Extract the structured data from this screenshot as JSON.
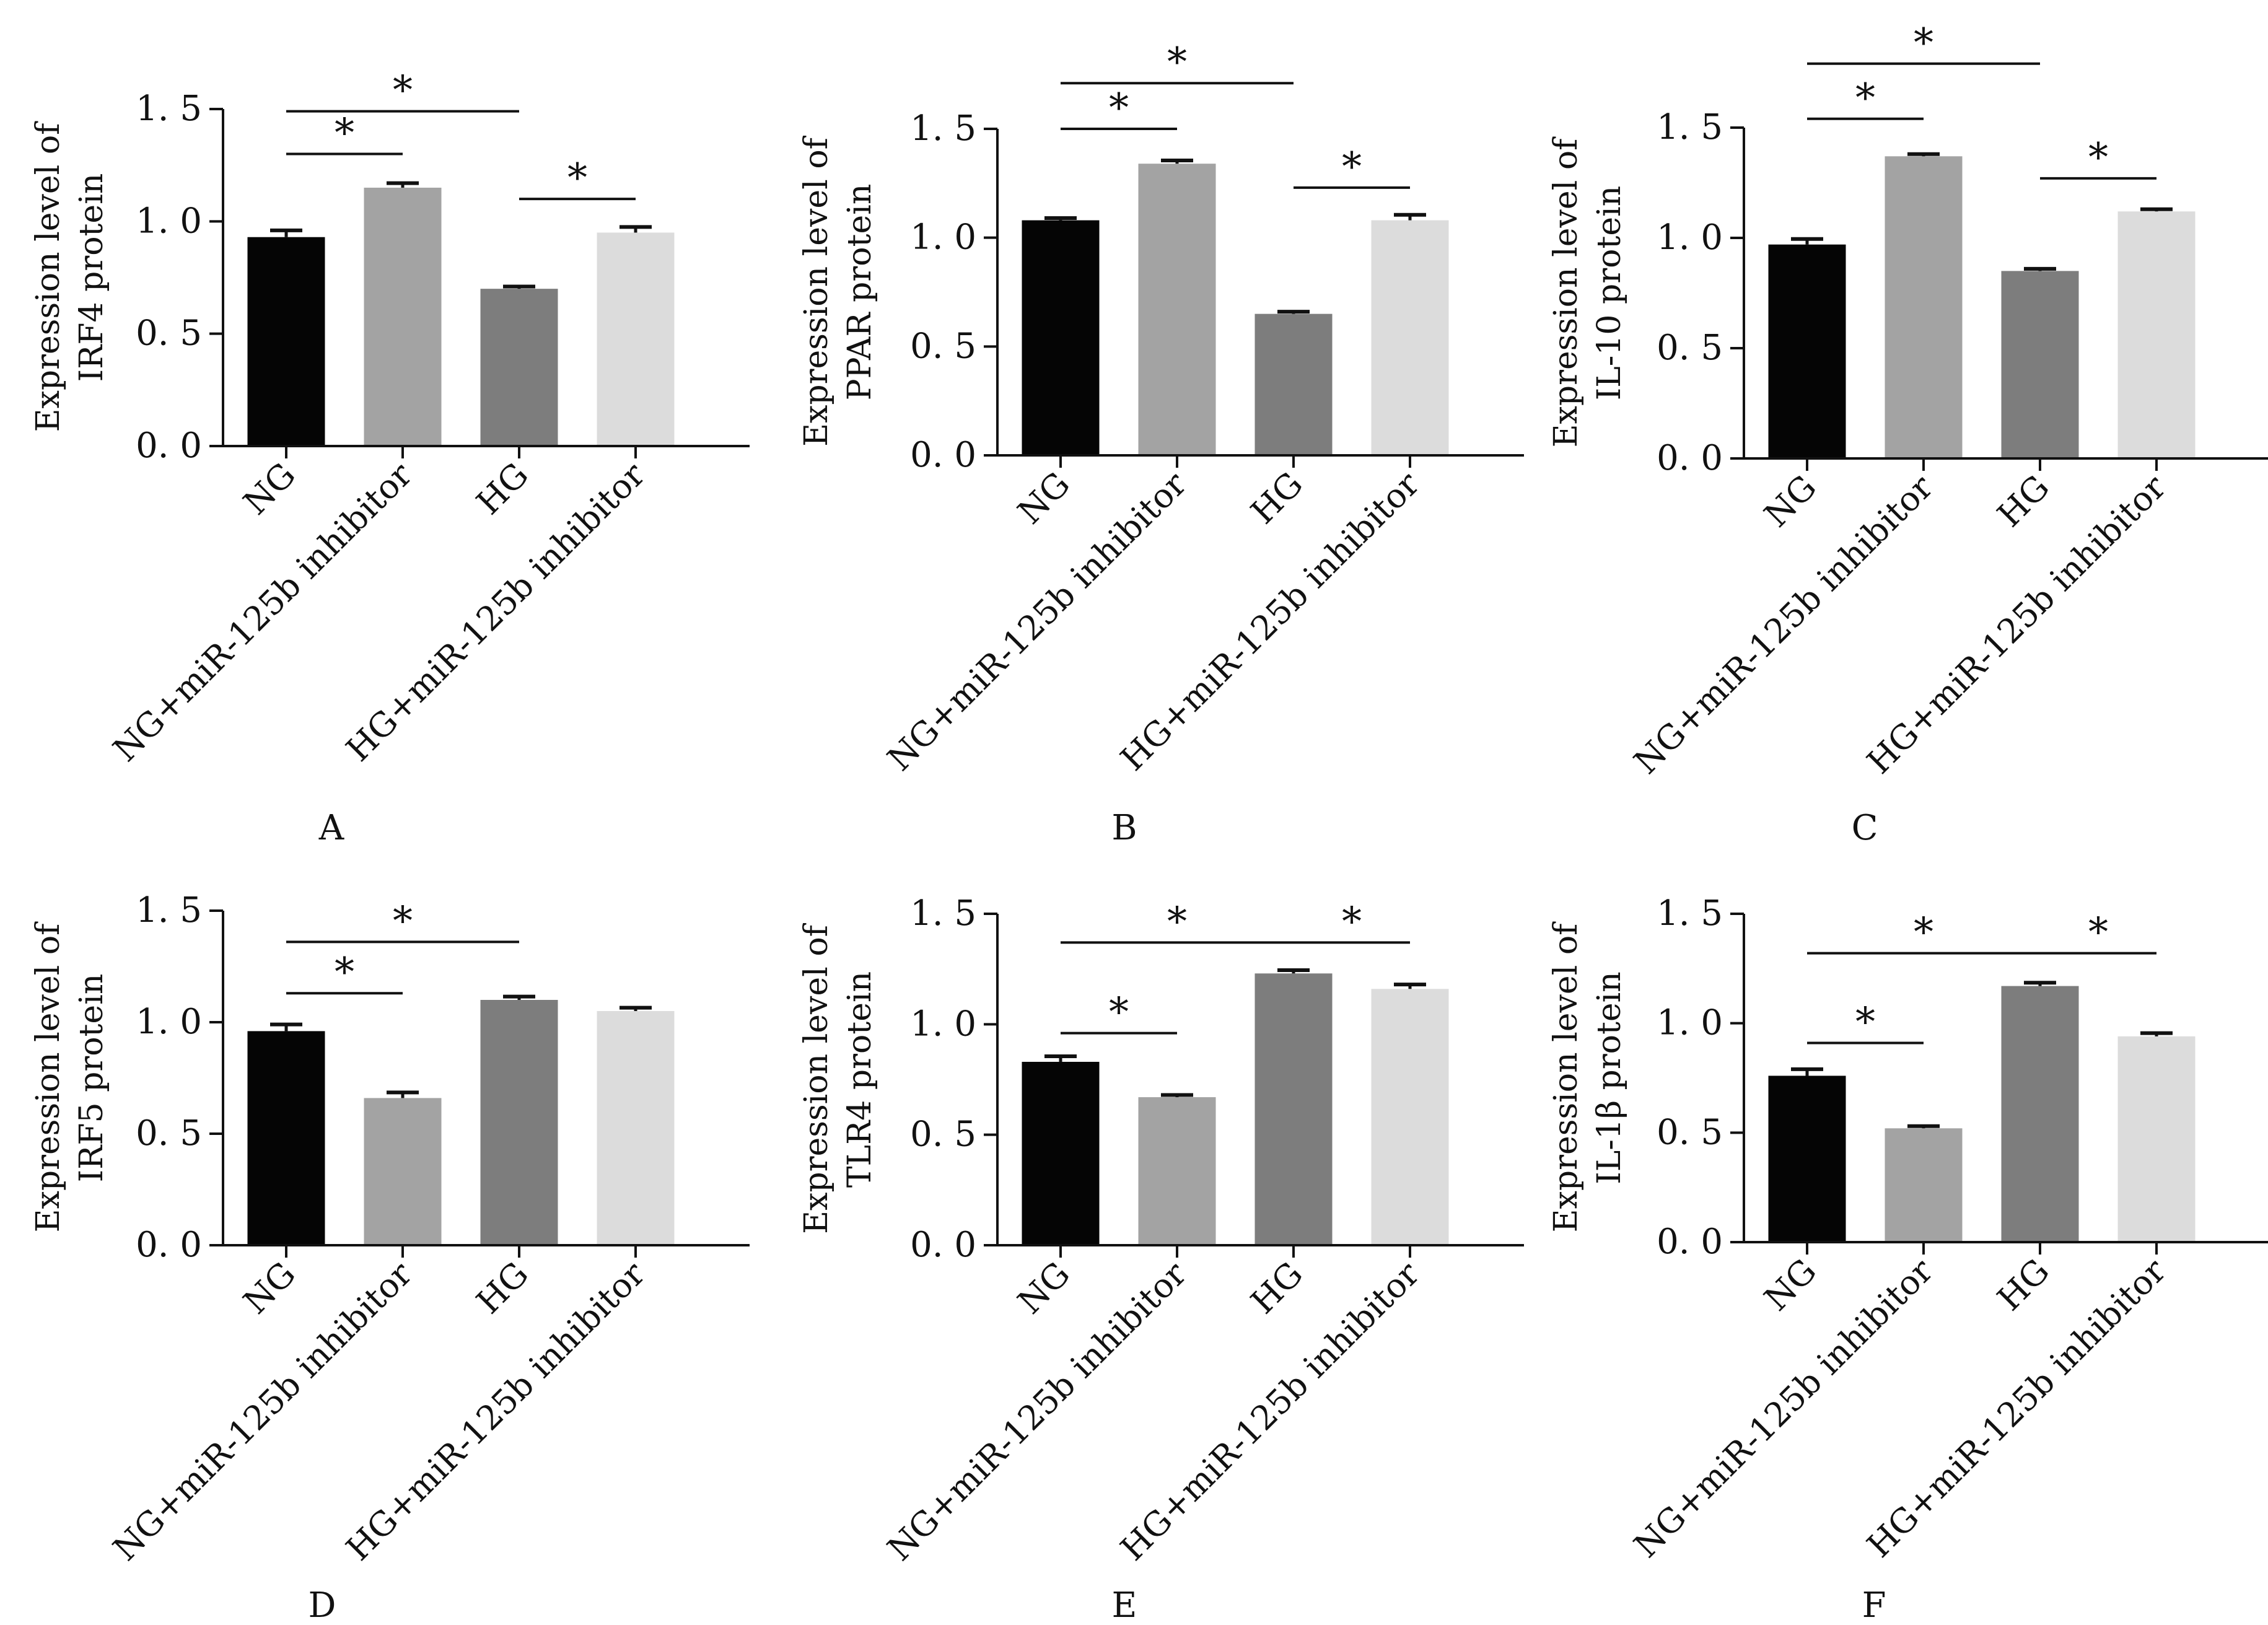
{
  "figure": {
    "categories": [
      "NG",
      "NG+miR-125b inhibitor",
      "HG",
      "HG+miR-125b inhibitor"
    ],
    "bar_colors": [
      "#050505",
      "#a3a3a3",
      "#7d7d7d",
      "#dcdcdc"
    ],
    "significance_symbol": "*"
  },
  "chart_data": [
    {
      "type": "bar",
      "panel": "A",
      "ylabel_line1": "Expression level of",
      "ylabel_line2": "IRF4 protein",
      "ylim": [
        0,
        1.5
      ],
      "yticks": [
        "0. 0",
        "0. 5",
        "1. 0",
        "1. 5"
      ],
      "values": [
        0.93,
        1.15,
        0.7,
        0.95
      ],
      "errors": [
        0.03,
        0.02,
        0.01,
        0.025
      ],
      "significance": [
        {
          "from": 0,
          "to": 1,
          "y": 1.3,
          "label": "*"
        },
        {
          "from": 0,
          "to": 2,
          "y": 1.49,
          "label": "*"
        },
        {
          "from": 2,
          "to": 3,
          "y": 1.1,
          "label": "*"
        }
      ]
    },
    {
      "type": "bar",
      "panel": "B",
      "ylabel_line1": "Expression level of",
      "ylabel_line2": "PPAR protein",
      "ylim": [
        0,
        1.5
      ],
      "yticks": [
        "0. 0",
        "0. 5",
        "1. 0",
        "1. 5"
      ],
      "values": [
        1.08,
        1.34,
        0.65,
        1.08
      ],
      "errors": [
        0.01,
        0.015,
        0.01,
        0.025
      ],
      "significance": [
        {
          "from": 0,
          "to": 1,
          "y": 1.5,
          "label": "*"
        },
        {
          "from": 0,
          "to": 2,
          "y": 1.71,
          "label": "*"
        },
        {
          "from": 2,
          "to": 3,
          "y": 1.23,
          "label": "*"
        }
      ]
    },
    {
      "type": "bar",
      "panel": "C",
      "ylabel_line1": "Expression level of",
      "ylabel_line2": "IL-10 protein",
      "ylim": [
        0,
        1.5
      ],
      "yticks": [
        "0. 0",
        "0. 5",
        "1. 0",
        "1. 5"
      ],
      "values": [
        0.97,
        1.37,
        0.85,
        1.12
      ],
      "errors": [
        0.025,
        0.01,
        0.01,
        0.01
      ],
      "significance": [
        {
          "from": 0,
          "to": 1,
          "y": 1.54,
          "label": "*"
        },
        {
          "from": 0,
          "to": 2,
          "y": 1.79,
          "label": "*"
        },
        {
          "from": 2,
          "to": 3,
          "y": 1.27,
          "label": "*"
        }
      ]
    },
    {
      "type": "bar",
      "panel": "D",
      "ylabel_line1": "Expression level of",
      "ylabel_line2": "IRF5 protein",
      "ylim": [
        0,
        1.5
      ],
      "yticks": [
        "0. 0",
        "0. 5",
        "1. 0",
        "1. 5"
      ],
      "values": [
        0.96,
        0.66,
        1.1,
        1.05
      ],
      "errors": [
        0.03,
        0.025,
        0.015,
        0.015
      ],
      "significance": [
        {
          "from": 0,
          "to": 1,
          "y": 1.13,
          "label": "*"
        },
        {
          "from": 0,
          "to": 2,
          "y": 1.36,
          "label": "*"
        }
      ]
    },
    {
      "type": "bar",
      "panel": "E",
      "ylabel_line1": "Expression level of",
      "ylabel_line2": "TLR4 protein",
      "ylim": [
        0,
        1.5
      ],
      "yticks": [
        "0. 0",
        "0. 5",
        "1. 0",
        "1. 5"
      ],
      "values": [
        0.83,
        0.67,
        1.23,
        1.16
      ],
      "errors": [
        0.025,
        0.01,
        0.015,
        0.02
      ],
      "significance": [
        {
          "from": 0,
          "to": 1,
          "y": 0.96,
          "label": "*"
        },
        {
          "from": 0,
          "to": 2,
          "y": 1.37,
          "label": "*"
        },
        {
          "from": 2,
          "to": 3,
          "y": 1.37,
          "label": "*"
        }
      ]
    },
    {
      "type": "bar",
      "panel": "F",
      "ylabel_line1": "Expression level of",
      "ylabel_line2": "IL-1β protein",
      "ylim": [
        0,
        1.5
      ],
      "yticks": [
        "0. 0",
        "0. 5",
        "1. 0",
        "1. 5"
      ],
      "values": [
        0.76,
        0.52,
        1.17,
        0.94
      ],
      "errors": [
        0.03,
        0.01,
        0.015,
        0.015
      ],
      "significance": [
        {
          "from": 0,
          "to": 1,
          "y": 0.91,
          "label": "*"
        },
        {
          "from": 0,
          "to": 2,
          "y": 1.32,
          "label": "*"
        },
        {
          "from": 2,
          "to": 3,
          "y": 1.32,
          "label": "*"
        }
      ]
    }
  ]
}
